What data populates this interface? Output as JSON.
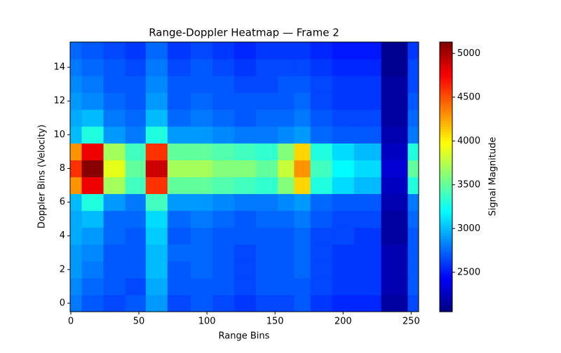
{
  "chart_data": {
    "type": "heatmap",
    "title": "Range-Doppler Heatmap — Frame 2",
    "x_label": "Range Bins",
    "y_label": "Doppler Bins (Velocity)",
    "colorbar_label": "Signal Magnitude",
    "colormap": "jet",
    "x": [
      0,
      16,
      32,
      48,
      62,
      80,
      96,
      112,
      128,
      144,
      160,
      168,
      184,
      200,
      216,
      240,
      255
    ],
    "y": [
      0,
      1,
      2,
      3,
      4,
      5,
      6,
      7,
      8,
      9,
      10,
      11,
      12,
      13,
      14,
      15
    ],
    "z": [
      [
        2800,
        2700,
        2650,
        2700,
        2900,
        2650,
        2700,
        2650,
        2600,
        2650,
        2650,
        2700,
        2600,
        2550,
        2550,
        2150,
        2650
      ],
      [
        2850,
        2750,
        2700,
        2650,
        2950,
        2700,
        2700,
        2700,
        2650,
        2700,
        2700,
        2700,
        2650,
        2600,
        2600,
        2200,
        2700
      ],
      [
        2900,
        2800,
        2700,
        2700,
        3000,
        2700,
        2750,
        2700,
        2650,
        2700,
        2700,
        2750,
        2650,
        2600,
        2600,
        2200,
        2700
      ],
      [
        2900,
        2850,
        2700,
        2700,
        3000,
        2750,
        2750,
        2700,
        2650,
        2700,
        2700,
        2750,
        2650,
        2600,
        2600,
        2200,
        2700
      ],
      [
        2950,
        2900,
        2750,
        2700,
        3050,
        2700,
        2750,
        2700,
        2700,
        2700,
        2700,
        2750,
        2650,
        2650,
        2600,
        2150,
        2700
      ],
      [
        2950,
        3000,
        2750,
        2750,
        3100,
        2750,
        2800,
        2750,
        2700,
        2750,
        2750,
        2800,
        2700,
        2650,
        2650,
        2150,
        2750
      ],
      [
        3000,
        3300,
        2900,
        2800,
        3400,
        2900,
        2900,
        2850,
        2800,
        2800,
        2850,
        2900,
        2750,
        2700,
        2700,
        2200,
        2800
      ],
      [
        4300,
        4800,
        3700,
        3400,
        4600,
        3500,
        3500,
        3450,
        3400,
        3350,
        3600,
        4100,
        3300,
        3100,
        3000,
        2250,
        3300
      ],
      [
        4600,
        5100,
        3900,
        3500,
        4900,
        3700,
        3700,
        3600,
        3600,
        3500,
        3800,
        4300,
        3400,
        3200,
        3100,
        2300,
        3500
      ],
      [
        4300,
        4800,
        3700,
        3400,
        4600,
        3500,
        3500,
        3450,
        3400,
        3350,
        3600,
        4100,
        3300,
        3100,
        3000,
        2250,
        3300
      ],
      [
        3000,
        3300,
        2900,
        2800,
        3300,
        2900,
        2900,
        2850,
        2800,
        2800,
        2850,
        2900,
        2750,
        2700,
        2700,
        2200,
        2800
      ],
      [
        2950,
        3000,
        2800,
        2750,
        3000,
        2750,
        2800,
        2750,
        2700,
        2750,
        2750,
        2800,
        2700,
        2650,
        2650,
        2150,
        2750
      ],
      [
        2900,
        2850,
        2750,
        2700,
        2900,
        2700,
        2750,
        2700,
        2700,
        2700,
        2700,
        2750,
        2650,
        2600,
        2600,
        2150,
        2700
      ],
      [
        2850,
        2800,
        2700,
        2700,
        2850,
        2700,
        2700,
        2700,
        2650,
        2650,
        2700,
        2700,
        2650,
        2600,
        2600,
        2150,
        2650
      ],
      [
        2800,
        2750,
        2700,
        2650,
        2800,
        2650,
        2700,
        2650,
        2600,
        2650,
        2650,
        2650,
        2600,
        2550,
        2550,
        2100,
        2650
      ],
      [
        2750,
        2700,
        2650,
        2600,
        2750,
        2600,
        2650,
        2600,
        2550,
        2600,
        2600,
        2600,
        2550,
        2500,
        2500,
        2100,
        2600
      ]
    ],
    "xlim": [
      -0.5,
      255.5
    ],
    "ylim": [
      -0.5,
      15.5
    ],
    "xticks": [
      0,
      50,
      100,
      150,
      200,
      250
    ],
    "yticks": [
      0,
      2,
      4,
      6,
      8,
      10,
      12,
      14
    ],
    "clim": [
      2050,
      5130
    ],
    "cticks": [
      2500,
      3000,
      3500,
      4000,
      4500,
      5000
    ]
  }
}
